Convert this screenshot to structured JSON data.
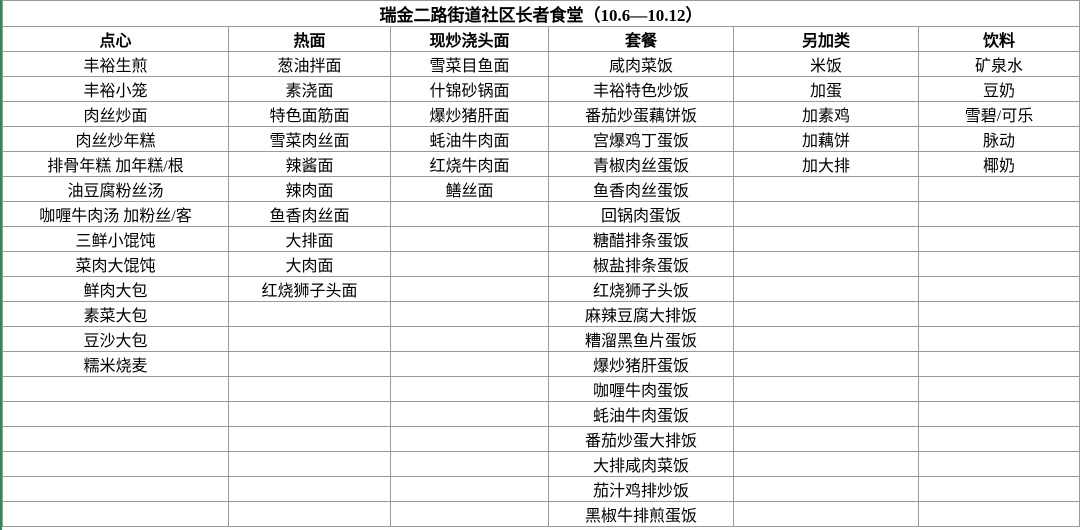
{
  "title": "瑞金二路街道社区长者食堂（10.6—10.12）",
  "columns": [
    {
      "header": "点心",
      "items": [
        "丰裕生煎",
        "丰裕小笼",
        "肉丝炒面",
        "肉丝炒年糕",
        "排骨年糕 加年糕/根",
        "油豆腐粉丝汤",
        "咖喱牛肉汤 加粉丝/客",
        "三鲜小馄饨",
        "菜肉大馄饨",
        "鲜肉大包",
        "素菜大包",
        "豆沙大包",
        "糯米烧麦"
      ]
    },
    {
      "header": "热面",
      "items": [
        "葱油拌面",
        "素浇面",
        "特色面筋面",
        "雪菜肉丝面",
        "辣酱面",
        "辣肉面",
        "鱼香肉丝面",
        "大排面",
        "大肉面",
        "红烧狮子头面"
      ]
    },
    {
      "header": "现炒浇头面",
      "items": [
        "雪菜目鱼面",
        "什锦砂锅面",
        "爆炒猪肝面",
        "蚝油牛肉面",
        "红烧牛肉面",
        "鳝丝面"
      ]
    },
    {
      "header": "套餐",
      "items": [
        "咸肉菜饭",
        "丰裕特色炒饭",
        "番茄炒蛋藕饼饭",
        "宫爆鸡丁蛋饭",
        "青椒肉丝蛋饭",
        "鱼香肉丝蛋饭",
        "回锅肉蛋饭",
        "糖醋排条蛋饭",
        "椒盐排条蛋饭",
        "红烧狮子头饭",
        "麻辣豆腐大排饭",
        "糟溜黑鱼片蛋饭",
        "爆炒猪肝蛋饭",
        "咖喱牛肉蛋饭",
        "蚝油牛肉蛋饭",
        "番茄炒蛋大排饭",
        "大排咸肉菜饭",
        "茄汁鸡排炒饭",
        "黑椒牛排煎蛋饭"
      ]
    },
    {
      "header": "另加类",
      "items": [
        "米饭",
        "加蛋",
        "加素鸡",
        "加藕饼",
        "加大排"
      ]
    },
    {
      "header": "饮料",
      "items": [
        "矿泉水",
        "豆奶",
        "雪碧/可乐",
        "脉动",
        "椰奶"
      ]
    }
  ]
}
